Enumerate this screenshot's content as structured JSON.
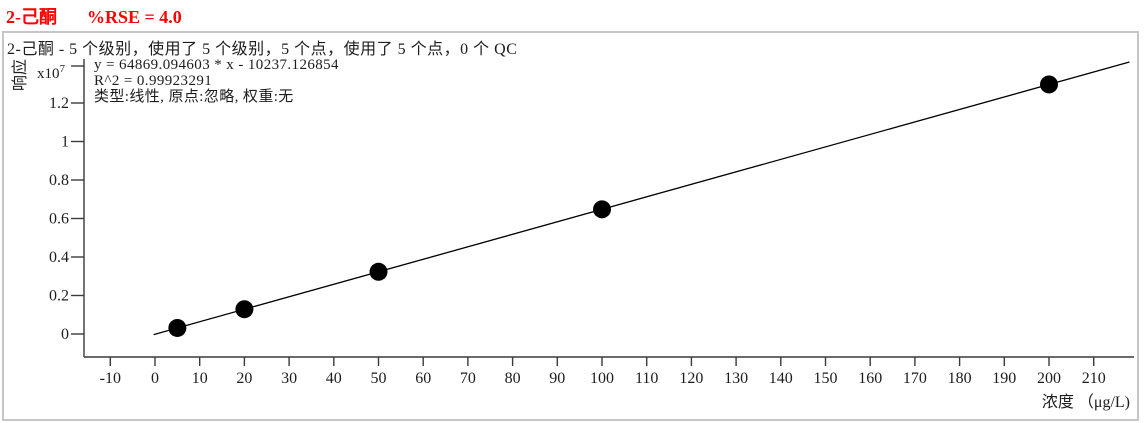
{
  "header": {
    "compound": "2-己酮",
    "rse": "%RSE = 4.0",
    "accent_color": "#fe0000"
  },
  "panel": {
    "subtitle": "2-己酮 - 5 个级别，使用了 5 个级别，5 个点，使用了 5 个点，0 个 QC",
    "equation": "y = 64869.094603 * x  - 10237.126854",
    "r_squared_line": "R^2 = 0.99923291",
    "model_line": "类型:线性, 原点:忽略, 权重:无",
    "border_color": "#c6c6c6"
  },
  "axes": {
    "y": {
      "label": "响应",
      "scale_base": "x10",
      "scale_exponent": "7"
    },
    "x": {
      "label": "浓度 （μg/L)"
    }
  },
  "chart_data": {
    "type": "scatter",
    "title": "2-己酮 calibration curve",
    "xlabel": "浓度 （μg/L)",
    "ylabel": "响应",
    "y_unit_scale": 10000000,
    "xlim": [
      -15,
      218
    ],
    "ylim_e7": [
      -0.05,
      1.45
    ],
    "x_ticks": [
      -10,
      0,
      10,
      20,
      30,
      40,
      50,
      60,
      70,
      80,
      90,
      100,
      110,
      120,
      130,
      140,
      150,
      160,
      170,
      180,
      190,
      200,
      210
    ],
    "y_ticks_e7": [
      0,
      0.2,
      0.4,
      0.6,
      0.8,
      1,
      1.2
    ],
    "y_tick_labels": [
      "0",
      "0.2",
      "0.4",
      "0.6",
      "0.8",
      "1",
      "1.2"
    ],
    "points": [
      {
        "conc": 5,
        "response_e7": 0.0314
      },
      {
        "conc": 20,
        "response_e7": 0.1287
      },
      {
        "conc": 50,
        "response_e7": 0.3232
      },
      {
        "conc": 100,
        "response_e7": 0.6477
      },
      {
        "conc": 200,
        "response_e7": 1.2964
      }
    ],
    "fit": {
      "type": "linear",
      "slope": 64869.094603,
      "intercept": -10237.126854,
      "r_squared": 0.99923291,
      "origin": "忽略",
      "weight": "无",
      "line_x_range": [
        -0.3,
        218
      ]
    },
    "legend": "none",
    "grid": false,
    "marker": {
      "shape": "circle",
      "radius_px": 9,
      "color": "#000000"
    },
    "line_color": "#000000"
  }
}
